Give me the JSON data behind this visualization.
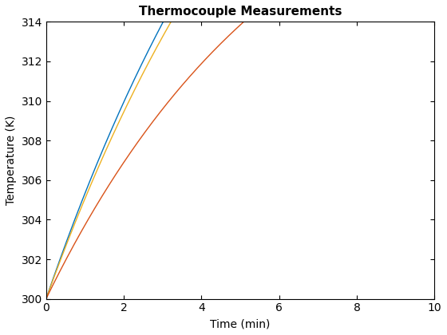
{
  "title": "Thermocouple Measurements",
  "xlabel": "Time (min)",
  "ylabel": "Temperature (K)",
  "xlim": [
    0,
    10
  ],
  "ylim": [
    300,
    314
  ],
  "xticks": [
    0,
    2,
    4,
    6,
    8,
    10
  ],
  "yticks": [
    300,
    302,
    304,
    306,
    308,
    310,
    312,
    314
  ],
  "T0": 300,
  "lines": [
    {
      "T_env": 340.0,
      "tau": 7.0,
      "color": "#0072BD",
      "lw": 1.0
    },
    {
      "T_env": 338.0,
      "tau": 7.0,
      "color": "#EDB120",
      "lw": 1.0
    },
    {
      "T_env": 325.0,
      "tau": 6.2,
      "color": "#D95319",
      "lw": 1.0
    }
  ],
  "background_color": "#ffffff",
  "title_fontsize": 11,
  "label_fontsize": 10,
  "tick_fontsize": 10
}
